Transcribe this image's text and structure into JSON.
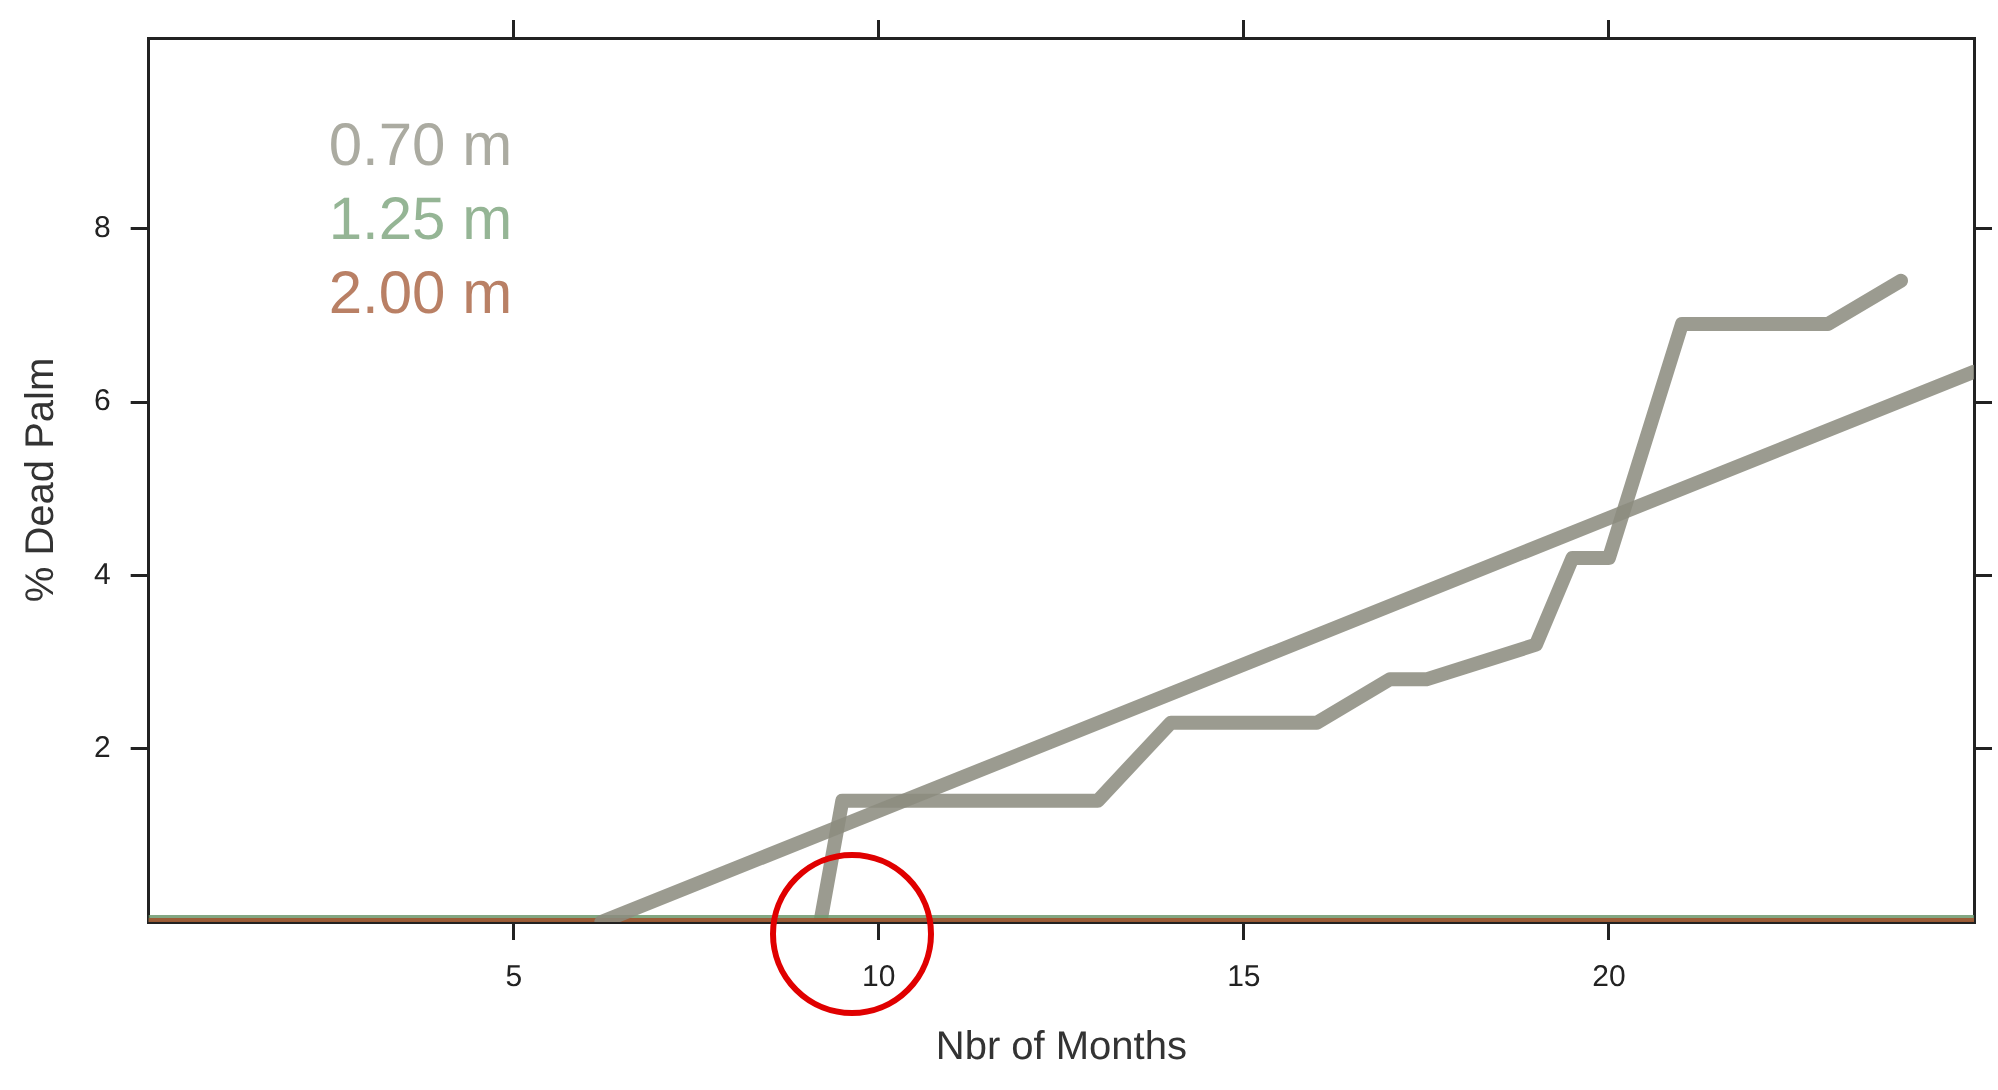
{
  "chart_data": {
    "type": "line",
    "xlabel": "Nbr of Months",
    "ylabel": "% Dead Palm",
    "xlim": [
      0,
      25
    ],
    "xticks": [
      5,
      10,
      15,
      20
    ],
    "ylim": [
      0,
      10.2
    ],
    "yticks": [
      2,
      4,
      6,
      8
    ],
    "grid": false,
    "legend": "top left",
    "marker": "none",
    "line_style": "solid",
    "series": [
      {
        "name": "0.70 m",
        "color": "#8c8c7f",
        "x": [
          9.2,
          9.5,
          13,
          14,
          16,
          17,
          17.5,
          19,
          19.5,
          20,
          21,
          23,
          24
        ],
        "values": [
          0,
          1.4,
          1.4,
          2.3,
          2.3,
          2.8,
          2.8,
          3.2,
          4.2,
          4.2,
          6.9,
          6.9,
          7.4
        ]
      },
      {
        "name": "1.25 m",
        "color": "#6f9a6f",
        "x": [
          0,
          25
        ],
        "values": [
          0,
          0
        ]
      },
      {
        "name": "2.00 m",
        "color": "#a0522d",
        "x": [
          0,
          25
        ],
        "values": [
          0,
          0
        ]
      },
      {
        "type": "line",
        "color": "#8c8c7f",
        "x": [
          6.2,
          25
        ],
        "values": [
          0,
          6.35
        ]
      }
    ]
  }
}
